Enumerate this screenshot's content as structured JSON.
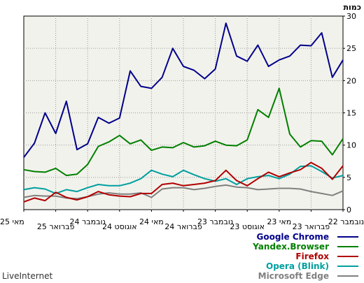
{
  "chart_data": {
    "type": "line",
    "unit_label": "כמות",
    "watermark": "LiveInternet",
    "ylim": [
      0,
      30
    ],
    "y_ticks": [
      "0",
      "5",
      "10",
      "15",
      "20",
      "25",
      "30"
    ],
    "grid": true,
    "legend_position": "bottom-right",
    "x_tick_labels": [
      "מאי 25",
      "פברואר 25",
      "נובמבר 24",
      "אוגוסט 24",
      "מאי 24",
      "פברואר 24",
      "נובמבר 23",
      "אוגוסט 23",
      "מאי 23",
      "פברואר 23",
      "נובמבר 22"
    ],
    "series": [
      {
        "name": "Google Chrome",
        "color": "#00008b",
        "values": [
          8.1,
          10.3,
          15.0,
          11.8,
          16.8,
          9.3,
          10.2,
          14.3,
          13.4,
          14.2,
          21.5,
          19.1,
          18.8,
          20.5,
          25.0,
          22.2,
          21.6,
          20.3,
          21.8,
          28.9,
          23.8,
          23.0,
          25.5,
          22.2,
          23.2,
          23.8,
          25.5,
          25.4,
          27.4,
          20.5,
          23.2
        ]
      },
      {
        "name": "Yandex.Browser",
        "color": "#008000",
        "values": [
          6.2,
          5.9,
          5.8,
          6.4,
          5.3,
          5.5,
          7.0,
          9.8,
          10.5,
          11.5,
          10.2,
          10.8,
          9.2,
          9.7,
          9.6,
          10.4,
          9.7,
          9.9,
          10.6,
          10.0,
          9.9,
          10.8,
          15.5,
          14.3,
          18.8,
          11.7,
          9.7,
          10.7,
          10.6,
          8.5,
          11.0
        ]
      },
      {
        "name": "Firefox",
        "color": "#b00000",
        "values": [
          1.2,
          1.8,
          1.4,
          2.7,
          1.9,
          1.5,
          2.0,
          2.8,
          2.3,
          2.1,
          2.0,
          2.5,
          2.5,
          3.9,
          4.1,
          3.7,
          3.9,
          4.1,
          4.5,
          6.1,
          4.5,
          3.7,
          4.8,
          5.8,
          5.1,
          5.7,
          6.2,
          7.3,
          6.4,
          4.7,
          6.8
        ]
      },
      {
        "name": "Opera (Blink)",
        "color": "#00a0a0",
        "values": [
          3.1,
          3.4,
          3.2,
          2.5,
          3.1,
          2.8,
          3.4,
          3.9,
          3.7,
          3.7,
          4.1,
          4.8,
          6.1,
          5.5,
          5.1,
          6.1,
          5.4,
          4.8,
          4.4,
          4.8,
          3.9,
          4.8,
          5.1,
          5.3,
          4.8,
          5.5,
          6.7,
          6.8,
          5.9,
          4.9,
          5.3
        ]
      },
      {
        "name": "Microsoft Edge",
        "color": "#808080",
        "values": [
          1.9,
          2.2,
          2.1,
          2.1,
          1.8,
          1.7,
          2.0,
          2.4,
          2.6,
          2.4,
          2.4,
          2.6,
          1.9,
          3.2,
          3.4,
          3.4,
          3.1,
          3.3,
          3.6,
          3.8,
          3.5,
          3.4,
          3.1,
          3.2,
          3.3,
          3.3,
          3.2,
          2.8,
          2.5,
          2.2,
          2.9
        ]
      }
    ]
  }
}
